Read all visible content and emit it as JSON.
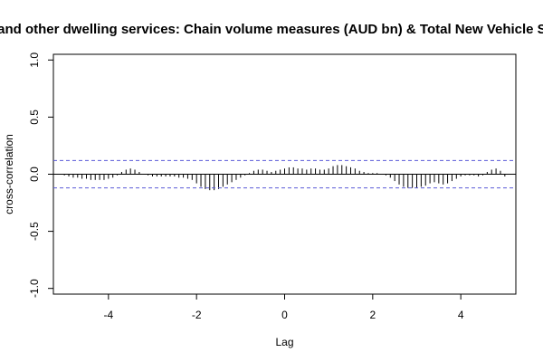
{
  "chart_data": {
    "type": "bar",
    "subtype": "cross-correlation",
    "title": "t and other dwelling services: Chain volume measures (AUD bn) & Total New Vehicle Sa",
    "xlabel": "Lag",
    "ylabel": "cross-correlation",
    "xlim": [
      -5.25,
      5.25
    ],
    "ylim": [
      -1.05,
      1.05
    ],
    "x_ticks": [
      -4,
      -2,
      0,
      2,
      4
    ],
    "y_ticks": [
      -1.0,
      -0.5,
      0.0,
      0.5,
      1.0
    ],
    "x_tick_labels": [
      "-4",
      "-2",
      "0",
      "2",
      "4"
    ],
    "y_tick_labels": [
      "-1.0",
      "-0.5",
      "0.0",
      "0.5",
      "1.0"
    ],
    "confidence_bound": 0.12,
    "grid": false,
    "colors": {
      "bars": "#000000",
      "zero_line": "#000000",
      "confidence": "#5a5ad8"
    },
    "x": [
      -5.0,
      -4.9,
      -4.8,
      -4.7,
      -4.6,
      -4.5,
      -4.4,
      -4.3,
      -4.2,
      -4.1,
      -4.0,
      -3.9,
      -3.8,
      -3.7,
      -3.6,
      -3.5,
      -3.4,
      -3.3,
      -3.2,
      -3.1,
      -3.0,
      -2.9,
      -2.8,
      -2.7,
      -2.6,
      -2.5,
      -2.4,
      -2.3,
      -2.2,
      -2.1,
      -2.0,
      -1.9,
      -1.8,
      -1.7,
      -1.6,
      -1.5,
      -1.4,
      -1.3,
      -1.2,
      -1.1,
      -1.0,
      -0.9,
      -0.8,
      -0.7,
      -0.6,
      -0.5,
      -0.4,
      -0.3,
      -0.2,
      -0.1,
      0.0,
      0.1,
      0.2,
      0.3,
      0.4,
      0.5,
      0.6,
      0.7,
      0.8,
      0.9,
      1.0,
      1.1,
      1.2,
      1.3,
      1.4,
      1.5,
      1.6,
      1.7,
      1.8,
      1.9,
      2.0,
      2.1,
      2.2,
      2.3,
      2.4,
      2.5,
      2.6,
      2.7,
      2.8,
      2.9,
      3.0,
      3.1,
      3.2,
      3.3,
      3.4,
      3.5,
      3.6,
      3.7,
      3.8,
      3.9,
      4.0,
      4.1,
      4.2,
      4.3,
      4.4,
      4.5,
      4.6,
      4.7,
      4.8,
      4.9,
      5.0
    ],
    "values": [
      -0.01,
      -0.02,
      -0.03,
      -0.03,
      -0.04,
      -0.04,
      -0.05,
      -0.05,
      -0.05,
      -0.05,
      -0.04,
      -0.03,
      -0.01,
      0.02,
      0.04,
      0.05,
      0.04,
      0.02,
      0.0,
      -0.01,
      -0.02,
      -0.02,
      -0.02,
      -0.02,
      -0.02,
      -0.02,
      -0.03,
      -0.03,
      -0.04,
      -0.05,
      -0.08,
      -0.11,
      -0.13,
      -0.14,
      -0.14,
      -0.13,
      -0.11,
      -0.09,
      -0.07,
      -0.05,
      -0.03,
      -0.01,
      0.01,
      0.03,
      0.04,
      0.04,
      0.03,
      0.02,
      0.03,
      0.04,
      0.05,
      0.06,
      0.06,
      0.05,
      0.05,
      0.04,
      0.05,
      0.05,
      0.04,
      0.04,
      0.05,
      0.07,
      0.08,
      0.08,
      0.07,
      0.06,
      0.05,
      0.03,
      0.02,
      0.01,
      0.01,
      0.01,
      0.0,
      -0.01,
      -0.03,
      -0.06,
      -0.09,
      -0.11,
      -0.12,
      -0.12,
      -0.12,
      -0.11,
      -0.1,
      -0.08,
      -0.07,
      -0.08,
      -0.09,
      -0.08,
      -0.06,
      -0.04,
      -0.02,
      -0.01,
      -0.01,
      -0.01,
      -0.02,
      -0.01,
      0.02,
      0.04,
      0.05,
      0.03,
      -0.02
    ]
  }
}
